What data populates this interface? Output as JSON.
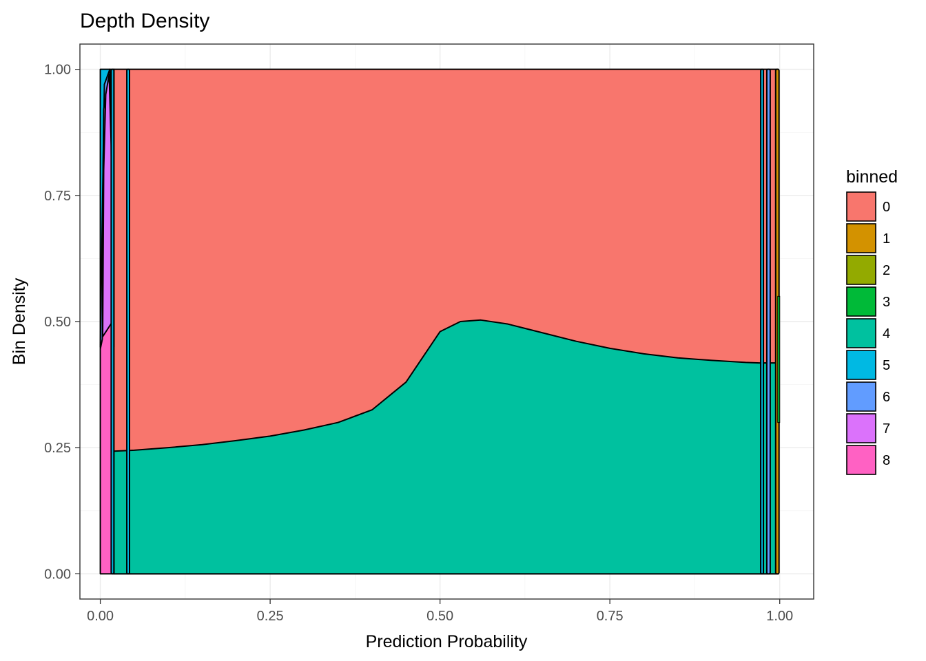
{
  "chart_data": {
    "type": "area",
    "stacking": "fill",
    "title": "Depth Density",
    "xlabel": "Prediction Probability",
    "ylabel": "Bin Density",
    "xlim": [
      -0.03,
      1.05
    ],
    "ylim": [
      -0.05,
      1.05
    ],
    "x_ticks": [
      0.0,
      0.25,
      0.5,
      0.75,
      1.0
    ],
    "x_tick_labels": [
      "0.00",
      "0.25",
      "0.50",
      "0.75",
      "1.00"
    ],
    "y_ticks": [
      0.0,
      0.25,
      0.5,
      0.75,
      1.0
    ],
    "y_tick_labels": [
      "0.00",
      "0.25",
      "0.50",
      "0.75",
      "1.00"
    ],
    "grid": true,
    "legend_position": "right",
    "legend_title": "binned",
    "series": [
      {
        "name": "0",
        "color": "#F8766D"
      },
      {
        "name": "1",
        "color": "#D39200"
      },
      {
        "name": "2",
        "color": "#93AA00"
      },
      {
        "name": "3",
        "color": "#00BA38"
      },
      {
        "name": "4",
        "color": "#00C19F"
      },
      {
        "name": "5",
        "color": "#00B9E3"
      },
      {
        "name": "6",
        "color": "#619CFF"
      },
      {
        "name": "7",
        "color": "#DB72FB"
      },
      {
        "name": "8",
        "color": "#FF61C3"
      }
    ],
    "bin4_upper_boundary": {
      "x": [
        0.02,
        0.05,
        0.1,
        0.15,
        0.2,
        0.25,
        0.3,
        0.35,
        0.4,
        0.45,
        0.48,
        0.5,
        0.53,
        0.56,
        0.6,
        0.65,
        0.7,
        0.75,
        0.8,
        0.85,
        0.9,
        0.95,
        0.97,
        0.998
      ],
      "y": [
        0.243,
        0.245,
        0.25,
        0.256,
        0.264,
        0.273,
        0.285,
        0.3,
        0.325,
        0.38,
        0.44,
        0.48,
        0.5,
        0.503,
        0.495,
        0.478,
        0.461,
        0.447,
        0.436,
        0.428,
        0.423,
        0.419,
        0.418,
        0.418
      ]
    },
    "left_edge": {
      "bin8_right_x": [
        0.0,
        0.005,
        0.01,
        0.015,
        0.018,
        0.02
      ],
      "bin7_upper_x": [
        0.0,
        0.003,
        0.004,
        0.005,
        0.01,
        0.014
      ],
      "bin7_upper_y": [
        0.45,
        0.47,
        0.8,
        0.93,
        0.97,
        1.0
      ]
    },
    "spikes": [
      {
        "series": "5",
        "x": [
          0.039,
          0.043
        ]
      },
      {
        "series": "5",
        "x": [
          0.016,
          0.02
        ]
      },
      {
        "series": "5",
        "x": [
          0.972,
          0.976
        ]
      },
      {
        "series": "6",
        "x": [
          0.981,
          0.986
        ]
      },
      {
        "series": "1",
        "x": [
          0.994,
          0.999
        ]
      }
    ]
  }
}
